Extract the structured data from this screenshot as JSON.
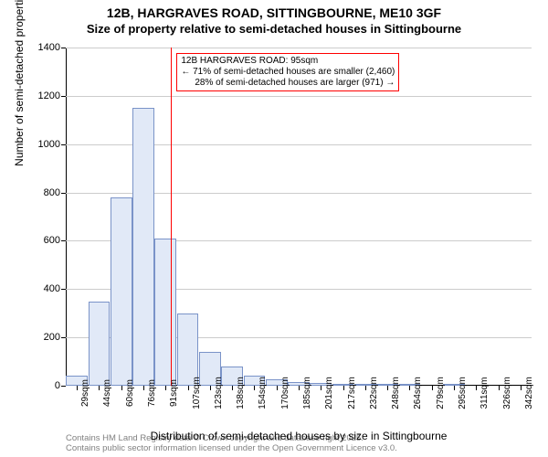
{
  "header": {
    "title": "12B, HARGRAVES ROAD, SITTINGBOURNE, ME10 3GF",
    "subtitle": "Size of property relative to semi-detached houses in Sittingbourne"
  },
  "chart": {
    "type": "histogram",
    "background_color": "#ffffff",
    "bar_fill": "#e1e9f7",
    "bar_stroke": "#7a93c8",
    "grid_color": "#cccccc",
    "axis_color": "#000000",
    "marker_color": "#ff0000",
    "marker_x_value": 95,
    "ylim": [
      0,
      1400
    ],
    "ytick_step": 200,
    "yticks": [
      0,
      200,
      400,
      600,
      800,
      1000,
      1200,
      1400
    ],
    "ylabel": "Number of semi-detached properties",
    "xlabel": "Distribution of semi-detached houses by size in Sittingbourne",
    "x_categories": [
      "29sqm",
      "44sqm",
      "60sqm",
      "76sqm",
      "91sqm",
      "107sqm",
      "123sqm",
      "138sqm",
      "154sqm",
      "170sqm",
      "185sqm",
      "201sqm",
      "217sqm",
      "232sqm",
      "248sqm",
      "264sqm",
      "279sqm",
      "295sqm",
      "311sqm",
      "326sqm",
      "342sqm"
    ],
    "bar_values": [
      40,
      350,
      780,
      1150,
      610,
      300,
      140,
      80,
      40,
      25,
      15,
      10,
      5,
      3,
      2,
      1,
      0,
      1,
      0,
      0,
      0
    ],
    "annotation": {
      "line1": "12B HARGRAVES ROAD: 95sqm",
      "line2": "← 71% of semi-detached houses are smaller (2,460)",
      "line3": "28% of semi-detached houses are larger (971) →",
      "border_color": "#ff0000"
    },
    "label_fontsize": 12,
    "tick_fontsize": 11
  },
  "footer": {
    "line1": "Contains HM Land Registry data © Crown copyright and database right 2025.",
    "line2": "Contains public sector information licensed under the Open Government Licence v3.0."
  }
}
